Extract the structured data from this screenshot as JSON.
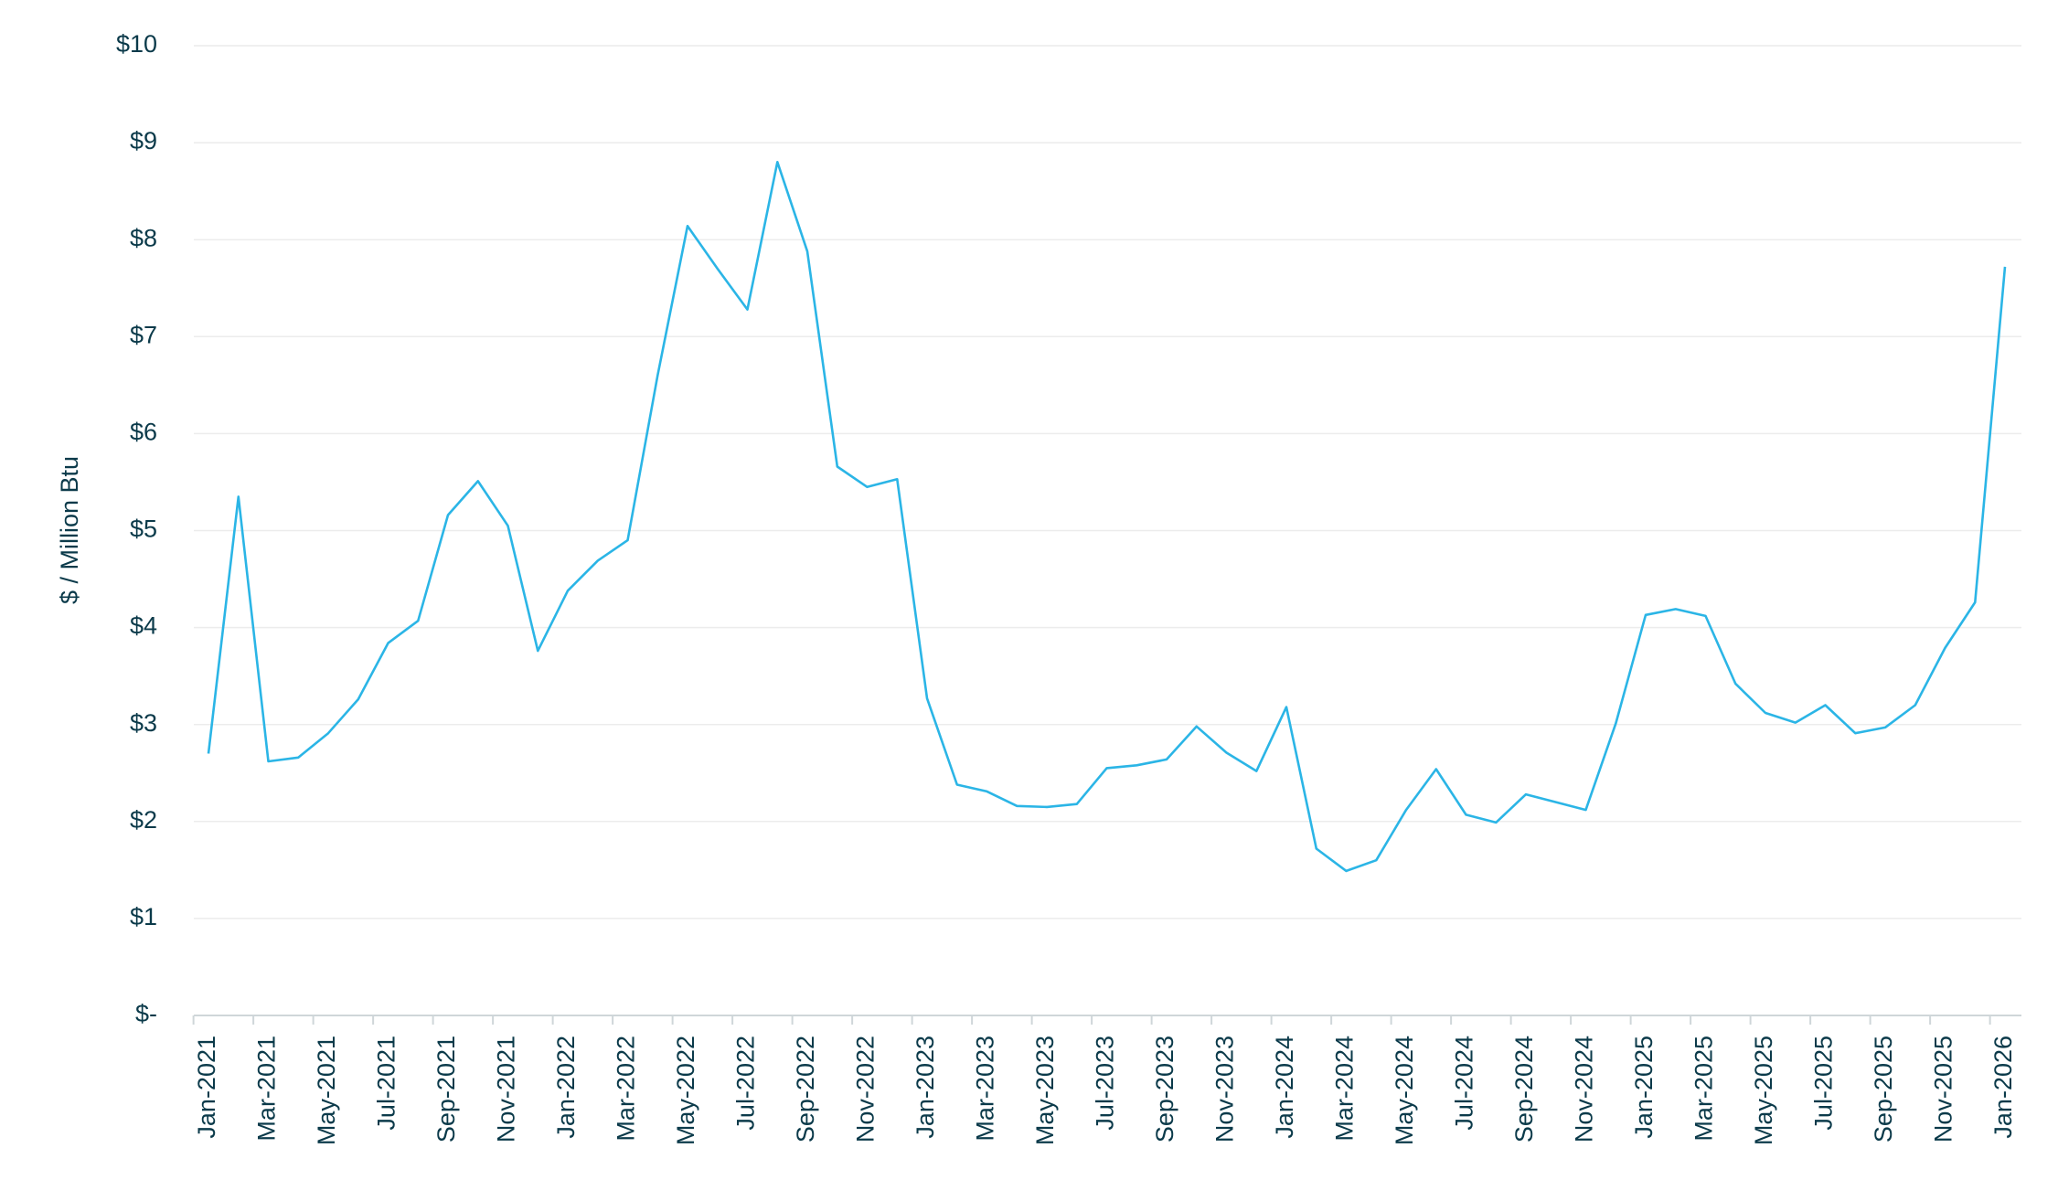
{
  "chart_data": {
    "type": "line",
    "y_label": "$ / Million Btu",
    "categories": [
      "Jan-2021",
      null,
      "Mar-2021",
      null,
      "May-2021",
      null,
      "Jul-2021",
      null,
      "Sep-2021",
      null,
      "Nov-2021",
      null,
      "Jan-2022",
      null,
      "Mar-2022",
      null,
      "May-2022",
      null,
      "Jul-2022",
      null,
      "Sep-2022",
      null,
      "Nov-2022",
      null,
      "Jan-2023",
      null,
      "Mar-2023",
      null,
      "May-2023",
      null,
      "Jul-2023",
      null,
      "Sep-2023",
      null,
      "Nov-2023",
      null,
      "Jan-2024",
      null,
      "Mar-2024",
      null,
      "May-2024",
      null,
      "Jul-2024",
      null,
      "Sep-2024",
      null,
      "Nov-2024",
      null,
      "Jan-2025",
      null,
      "Mar-2025",
      null,
      "May-2025",
      null,
      "Jul-2025",
      null,
      "Sep-2025",
      null,
      "Nov-2025",
      null,
      "Jan-2026"
    ],
    "values": [
      2.7,
      5.35,
      2.62,
      2.66,
      2.91,
      3.26,
      3.84,
      4.07,
      5.16,
      5.51,
      5.05,
      3.76,
      4.38,
      4.69,
      4.9,
      6.6,
      8.14,
      7.7,
      7.28,
      8.8,
      7.88,
      5.66,
      5.45,
      5.53,
      3.27,
      2.38,
      2.31,
      2.16,
      2.15,
      2.18,
      2.55,
      2.58,
      2.64,
      2.98,
      2.71,
      2.52,
      3.18,
      1.72,
      1.49,
      1.6,
      2.12,
      2.54,
      2.07,
      1.99,
      2.28,
      2.2,
      2.12,
      3.01,
      4.13,
      4.19,
      4.12,
      3.42,
      3.12,
      3.02,
      3.2,
      2.91,
      2.97,
      3.2,
      3.79,
      4.26,
      7.72
    ],
    "color": "#2bb5e6",
    "ylim": [
      0,
      10
    ],
    "yticks": [
      {
        "value": 0,
        "label": "$-"
      },
      {
        "value": 1,
        "label": "$1"
      },
      {
        "value": 2,
        "label": "$2"
      },
      {
        "value": 3,
        "label": "$3"
      },
      {
        "value": 4,
        "label": "$4"
      },
      {
        "value": 5,
        "label": "$5"
      },
      {
        "value": 6,
        "label": "$6"
      },
      {
        "value": 7,
        "label": "$7"
      },
      {
        "value": 8,
        "label": "$8"
      },
      {
        "value": 9,
        "label": "$9"
      },
      {
        "value": 10,
        "label": "$10"
      }
    ],
    "grid": true
  }
}
